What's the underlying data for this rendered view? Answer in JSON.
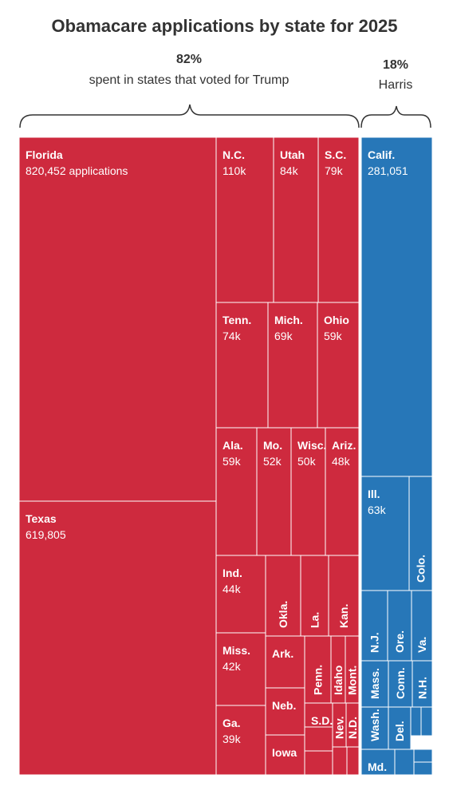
{
  "chart_data": {
    "type": "treemap",
    "title": "Obamacare applications by state for 2025",
    "groups": [
      {
        "name": "Trump",
        "percent": "82%",
        "label": "spent in states that voted for Trump",
        "color": "#CE2A3E"
      },
      {
        "name": "Harris",
        "percent": "18%",
        "label": "Harris",
        "color": "#2777B8"
      }
    ],
    "tiles": [
      {
        "name": "Florida",
        "value_label": "820,452 applications",
        "value": 820452,
        "group": "Trump"
      },
      {
        "name": "Texas",
        "value_label": "619,805",
        "value": 619805,
        "group": "Trump"
      },
      {
        "name": "N.C.",
        "value_label": "110k",
        "value": 110000,
        "group": "Trump"
      },
      {
        "name": "Utah",
        "value_label": "84k",
        "value": 84000,
        "group": "Trump"
      },
      {
        "name": "S.C.",
        "value_label": "79k",
        "value": 79000,
        "group": "Trump"
      },
      {
        "name": "Tenn.",
        "value_label": "74k",
        "value": 74000,
        "group": "Trump"
      },
      {
        "name": "Mich.",
        "value_label": "69k",
        "value": 69000,
        "group": "Trump"
      },
      {
        "name": "Ohio",
        "value_label": "59k",
        "value": 59000,
        "group": "Trump"
      },
      {
        "name": "Ala.",
        "value_label": "59k",
        "value": 59000,
        "group": "Trump"
      },
      {
        "name": "Mo.",
        "value_label": "52k",
        "value": 52000,
        "group": "Trump"
      },
      {
        "name": "Wisc.",
        "value_label": "50k",
        "value": 50000,
        "group": "Trump"
      },
      {
        "name": "Ariz.",
        "value_label": "48k",
        "value": 48000,
        "group": "Trump"
      },
      {
        "name": "Ind.",
        "value_label": "44k",
        "value": 44000,
        "group": "Trump"
      },
      {
        "name": "Miss.",
        "value_label": "42k",
        "value": 42000,
        "group": "Trump"
      },
      {
        "name": "Ga.",
        "value_label": "39k",
        "value": 39000,
        "group": "Trump"
      },
      {
        "name": "Okla.",
        "value_label": "",
        "group": "Trump"
      },
      {
        "name": "La.",
        "value_label": "",
        "group": "Trump"
      },
      {
        "name": "Kan.",
        "value_label": "",
        "group": "Trump"
      },
      {
        "name": "Ark.",
        "value_label": "",
        "group": "Trump"
      },
      {
        "name": "Penn.",
        "value_label": "",
        "group": "Trump"
      },
      {
        "name": "Idaho",
        "value_label": "",
        "group": "Trump"
      },
      {
        "name": "Mont.",
        "value_label": "",
        "group": "Trump"
      },
      {
        "name": "Neb.",
        "value_label": "",
        "group": "Trump"
      },
      {
        "name": "S.D.",
        "value_label": "",
        "group": "Trump"
      },
      {
        "name": "Nev.",
        "value_label": "",
        "group": "Trump"
      },
      {
        "name": "N.D.",
        "value_label": "",
        "group": "Trump"
      },
      {
        "name": "Iowa",
        "value_label": "",
        "group": "Trump"
      },
      {
        "name": "",
        "value_label": "",
        "group": "Trump"
      },
      {
        "name": "",
        "value_label": "",
        "group": "Trump"
      },
      {
        "name": "",
        "value_label": "",
        "group": "Trump"
      },
      {
        "name": "",
        "value_label": "",
        "group": "Trump"
      },
      {
        "name": "Calif.",
        "value_label": "281,051",
        "value": 281051,
        "group": "Harris"
      },
      {
        "name": "Ill.",
        "value_label": "63k",
        "value": 63000,
        "group": "Harris"
      },
      {
        "name": "Colo.",
        "value_label": "",
        "group": "Harris"
      },
      {
        "name": "N.J.",
        "value_label": "",
        "group": "Harris"
      },
      {
        "name": "Ore.",
        "value_label": "",
        "group": "Harris"
      },
      {
        "name": "Va.",
        "value_label": "",
        "group": "Harris"
      },
      {
        "name": "Mass.",
        "value_label": "",
        "group": "Harris"
      },
      {
        "name": "Conn.",
        "value_label": "",
        "group": "Harris"
      },
      {
        "name": "N.H.",
        "value_label": "",
        "group": "Harris"
      },
      {
        "name": "Wash.",
        "value_label": "",
        "group": "Harris"
      },
      {
        "name": "Del.",
        "value_label": "",
        "group": "Harris"
      },
      {
        "name": "Md.",
        "value_label": "",
        "group": "Harris"
      },
      {
        "name": "",
        "value_label": "",
        "group": "Harris"
      },
      {
        "name": "",
        "value_label": "",
        "group": "Harris"
      },
      {
        "name": "",
        "value_label": "",
        "group": "Harris"
      },
      {
        "name": "",
        "value_label": "",
        "group": "Harris"
      },
      {
        "name": "",
        "value_label": "",
        "group": "Harris"
      }
    ]
  }
}
